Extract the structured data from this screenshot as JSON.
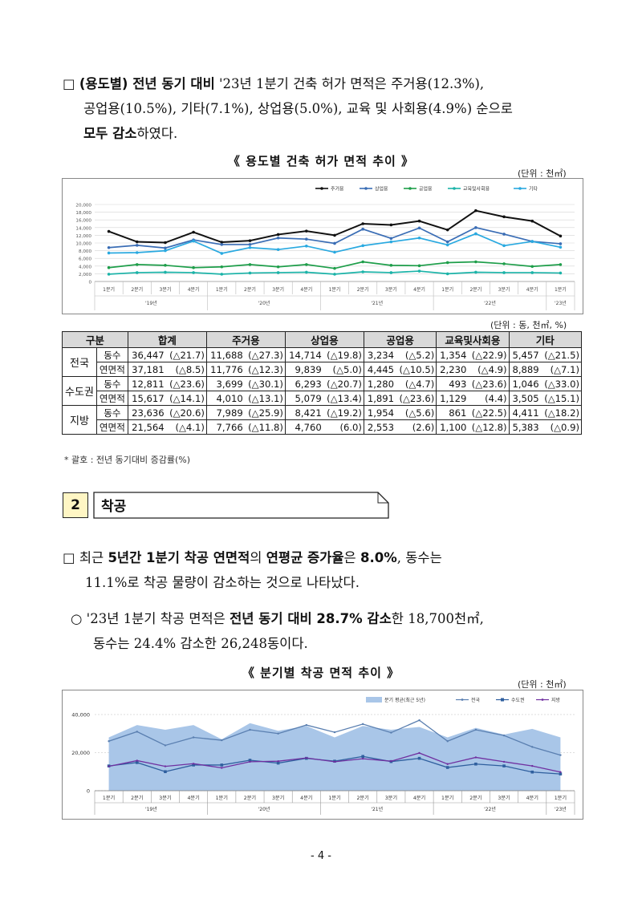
{
  "section_usage": {
    "bullet": "□",
    "lead": "(용도별) 전년 동기 대비",
    "text1": " '23년 1분기 건축 허가 면적은 주거용(12.3%),",
    "text2": "공업용(10.5%), 기타(7.1%), 상업용(5.0%), 교육 및 사회용(4.9%) 순으로",
    "bold_end": "모두 감소",
    "text3": "하였다."
  },
  "chart1": {
    "title": "《 용도별 건축 허가 면적 추이 》",
    "unit": "(단위 : 천㎡)",
    "chart_data": {
      "type": "line",
      "categories": [
        "1분기",
        "2분기",
        "3분기",
        "4분기",
        "1분기",
        "2분기",
        "3분기",
        "4분기",
        "1분기",
        "2분기",
        "3분기",
        "4분기",
        "1분기",
        "2분기",
        "3분기",
        "4분기",
        "1분기"
      ],
      "year_labels": [
        "'19년",
        "'20년",
        "'21년",
        "'22년",
        "'23년"
      ],
      "yticks": [
        "20,000",
        "18,000",
        "16,000",
        "14,000",
        "12,000",
        "10,000",
        "8,000",
        "6,000",
        "4,000",
        "2,000",
        "0"
      ],
      "ylim": [
        0,
        20000
      ],
      "series": [
        {
          "name": "주거용",
          "color": "#111111",
          "values": [
            13000,
            10300,
            10100,
            12800,
            10200,
            10600,
            12200,
            13100,
            12000,
            15000,
            14700,
            15700,
            13400,
            18400,
            16800,
            15700,
            11800
          ]
        },
        {
          "name": "상업용",
          "color": "#3a6db5",
          "values": [
            8800,
            9400,
            8700,
            10800,
            9600,
            9600,
            11300,
            11000,
            9900,
            13600,
            11200,
            13900,
            10300,
            14000,
            12300,
            10400,
            9800
          ]
        },
        {
          "name": "공업용",
          "color": "#1e9e4a",
          "values": [
            3600,
            4400,
            4200,
            3600,
            3800,
            4400,
            3800,
            4400,
            3400,
            5100,
            4200,
            4100,
            4900,
            5100,
            4600,
            3900,
            4400
          ]
        },
        {
          "name": "교육및사회용",
          "color": "#1bb3a8",
          "values": [
            1900,
            2300,
            2400,
            2300,
            1900,
            2200,
            2300,
            2400,
            1900,
            2500,
            2300,
            2700,
            2000,
            2400,
            2300,
            2300,
            2200
          ]
        },
        {
          "name": "기타",
          "color": "#29a9e0",
          "values": [
            7400,
            7500,
            8000,
            10500,
            7300,
            8800,
            8300,
            9200,
            7600,
            9300,
            10300,
            11300,
            9500,
            12400,
            9300,
            10400,
            8900
          ]
        }
      ]
    }
  },
  "table": {
    "unit": "(단위 : 동, 천㎡, %)",
    "headers": [
      "구분",
      "합계",
      "주거용",
      "상업용",
      "공업용",
      "교육및사회용",
      "기타"
    ],
    "rows": [
      {
        "region": "전국",
        "sub": "동수",
        "cells": [
          "36,447",
          "(△21.7)",
          "11,688",
          "(△27.3)",
          "14,714",
          "(△19.8)",
          "3,234",
          "(△5.2)",
          "1,354",
          "(△22.9)",
          "5,457",
          "(△21.5)"
        ]
      },
      {
        "region": "전국",
        "sub": "연면적",
        "cells": [
          "37,181",
          "(△8.5)",
          "11,776",
          "(△12.3)",
          "9,839",
          "(△5.0)",
          "4,445",
          "(△10.5)",
          "2,230",
          "(△4.9)",
          "8,889",
          "(△7.1)"
        ]
      },
      {
        "region": "수도권",
        "sub": "동수",
        "cells": [
          "12,811",
          "(△23.6)",
          "3,699",
          "(△30.1)",
          "6,293",
          "(△20.7)",
          "1,280",
          "(△4.7)",
          "493",
          "(△23.6)",
          "1,046",
          "(△33.0)"
        ]
      },
      {
        "region": "수도권",
        "sub": "연면적",
        "cells": [
          "15,617",
          "(△14.1)",
          "4,010",
          "(△13.1)",
          "5,079",
          "(△13.4)",
          "1,891",
          "(△23.6)",
          "1,129",
          "(4.4)",
          "3,505",
          "(△15.1)"
        ]
      },
      {
        "region": "지방",
        "sub": "동수",
        "cells": [
          "23,636",
          "(△20.6)",
          "7,989",
          "(△25.9)",
          "8,421",
          "(△19.2)",
          "1,954",
          "(△5.6)",
          "861",
          "(△22.5)",
          "4,411",
          "(△18.2)"
        ]
      },
      {
        "region": "지방",
        "sub": "연면적",
        "cells": [
          "21,564",
          "(△4.1)",
          "7,766",
          "(△11.8)",
          "4,760",
          "(6.0)",
          "2,553",
          "(2.6)",
          "1,100",
          "(△12.8)",
          "5,383",
          "(△0.9)"
        ]
      }
    ],
    "regions": [
      "전국",
      "수도권",
      "지방"
    ],
    "note": "* 괄호 : 전년 동기대비 증감률(%)"
  },
  "section2": {
    "number": "2",
    "title": "착공"
  },
  "section_start": {
    "bullet": "□",
    "p1a": "최근 ",
    "p1b": "5년간 1분기 착공 연면적",
    "p1c": "의 ",
    "p1d": "연평균 증가율",
    "p1e": "은 ",
    "p1f": "8.0%",
    "p1g": ", 동수는",
    "p2": "11.1%로 착공 물량이 감소하는 것으로 나타났다.",
    "sub_bullet": "○",
    "s1a": "'23년 1분기 착공 면적은 ",
    "s1b": "전년 동기 대비 28.7% 감소",
    "s1c": "한 18,700천㎡,",
    "s2": "동수는 24.4% 감소한 26,248동이다."
  },
  "chart2": {
    "title": "《 분기별 착공 면적 추이 》",
    "unit": "(단위 : 천㎡)",
    "chart_data": {
      "type": "area",
      "categories": [
        "1분기",
        "2분기",
        "3분기",
        "4분기",
        "1분기",
        "2분기",
        "3분기",
        "4분기",
        "1분기",
        "2분기",
        "3분기",
        "4분기",
        "1분기",
        "2분기",
        "3분기",
        "4분기",
        "1분기"
      ],
      "year_labels": [
        "'19년",
        "'20년",
        "'21년",
        "'22년",
        "'23년"
      ],
      "yticks": [
        "40,000",
        "20,000",
        "0"
      ],
      "ylim": [
        0,
        40000
      ],
      "series": [
        {
          "name": "분기 평균(최근 5년)",
          "color": "#a9c6e8",
          "values": [
            28000,
            34500,
            32000,
            34500,
            27000,
            35500,
            31500,
            34000,
            28000,
            34000,
            32000,
            33500,
            28000,
            33000,
            29500,
            32500,
            28000
          ]
        },
        {
          "name": "전국",
          "color": "#5a7fb0",
          "values": [
            26000,
            31000,
            23800,
            28000,
            26500,
            32000,
            30000,
            34500,
            30700,
            35000,
            30500,
            37000,
            26000,
            32000,
            29000,
            23000,
            18700
          ]
        },
        {
          "name": "수도권",
          "color": "#2f5f9e",
          "values": [
            13000,
            14800,
            10000,
            13500,
            13500,
            16000,
            14500,
            17000,
            15500,
            18000,
            15300,
            17000,
            12200,
            14000,
            13000,
            9800,
            8800
          ]
        },
        {
          "name": "지방",
          "color": "#7030a0",
          "values": [
            12800,
            15800,
            12800,
            14200,
            12000,
            15200,
            15500,
            17200,
            15200,
            16800,
            15500,
            19800,
            14000,
            17500,
            15200,
            13000,
            9800
          ]
        }
      ]
    }
  },
  "page_number": "- 4 -"
}
